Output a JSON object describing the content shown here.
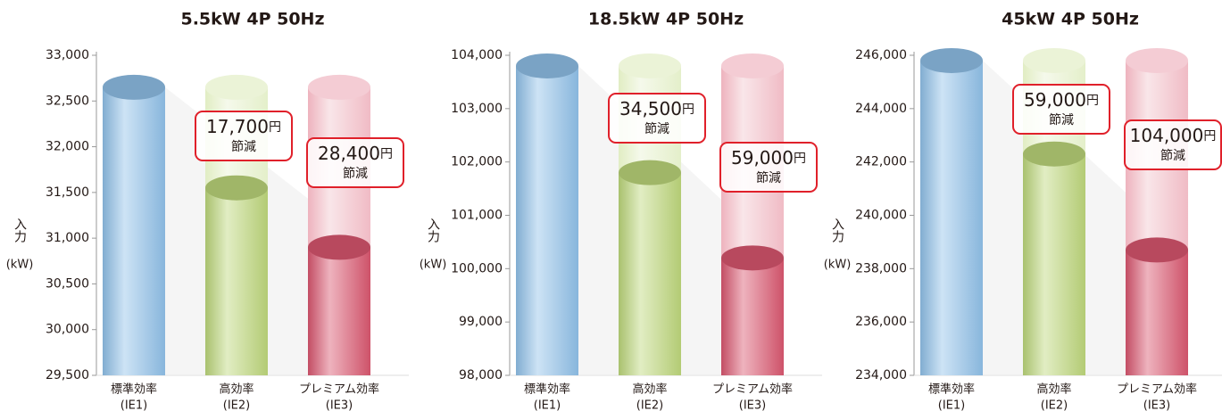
{
  "chart_data": [
    {
      "type": "cylinder",
      "title": "5.5kW 4P 50Hz",
      "y_label": "入力",
      "y_unit": "(kW)",
      "categories": [
        "標準効率",
        "高効率",
        "プレミアム効率"
      ],
      "category_codes": [
        "(IE1)",
        "(IE2)",
        "(IE3)"
      ],
      "values": [
        32650,
        31550,
        30900
      ],
      "colors": [
        "#8fc0e8",
        "#bcd67a",
        "#d9566f"
      ],
      "ylim": [
        29500,
        33000
      ],
      "yticks": [
        {
          "value": 29500,
          "label": "29,500"
        },
        {
          "value": 30000,
          "label": "30,000"
        },
        {
          "value": 30500,
          "label": "30,500"
        },
        {
          "value": 31000,
          "label": "31,000"
        },
        {
          "value": 31500,
          "label": "31,500"
        },
        {
          "value": 32000,
          "label": "32,000"
        },
        {
          "value": 32500,
          "label": "32,500"
        },
        {
          "value": 33000,
          "label": "33,000"
        }
      ],
      "annotations": [
        {
          "amount": "17,700",
          "unit": "円",
          "note": "節減"
        },
        {
          "amount": "28,400",
          "unit": "円",
          "note": "節減"
        }
      ]
    },
    {
      "type": "cylinder",
      "title": "18.5kW 4P 50Hz",
      "y_label": "入力",
      "y_unit": "(kW)",
      "categories": [
        "標準効率",
        "高効率",
        "プレミアム効率"
      ],
      "category_codes": [
        "(IE1)",
        "(IE2)",
        "(IE3)"
      ],
      "values": [
        103800,
        101800,
        100200
      ],
      "colors": [
        "#8fc0e8",
        "#bcd67a",
        "#d9566f"
      ],
      "ylim": [
        98000,
        104000
      ],
      "yticks": [
        {
          "value": 98000,
          "label": "98,000"
        },
        {
          "value": 99000,
          "label": "99,000"
        },
        {
          "value": 100000,
          "label": "100,000"
        },
        {
          "value": 101000,
          "label": "101,000"
        },
        {
          "value": 102000,
          "label": "102,000"
        },
        {
          "value": 103000,
          "label": "103,000"
        },
        {
          "value": 104000,
          "label": "104,000"
        }
      ],
      "annotations": [
        {
          "amount": "34,500",
          "unit": "円",
          "note": "節減"
        },
        {
          "amount": "59,000",
          "unit": "円",
          "note": "節減"
        }
      ]
    },
    {
      "type": "cylinder",
      "title": "45kW 4P 50Hz",
      "y_label": "入力",
      "y_unit": "(kW)",
      "categories": [
        "標準効率",
        "高効率",
        "プレミアム効率"
      ],
      "category_codes": [
        "(IE1)",
        "(IE2)",
        "(IE3)"
      ],
      "values": [
        245800,
        242300,
        238700
      ],
      "colors": [
        "#8fc0e8",
        "#bcd67a",
        "#d9566f"
      ],
      "ylim": [
        234000,
        246000
      ],
      "yticks": [
        {
          "value": 234000,
          "label": "234,000"
        },
        {
          "value": 236000,
          "label": "236,000"
        },
        {
          "value": 238000,
          "label": "238,000"
        },
        {
          "value": 240000,
          "label": "240,000"
        },
        {
          "value": 242000,
          "label": "242,000"
        },
        {
          "value": 244000,
          "label": "244,000"
        },
        {
          "value": 246000,
          "label": "246,000"
        }
      ],
      "annotations": [
        {
          "amount": "59,000",
          "unit": "円",
          "note": "節減"
        },
        {
          "amount": "104,000",
          "unit": "円",
          "note": "節減"
        }
      ]
    }
  ]
}
